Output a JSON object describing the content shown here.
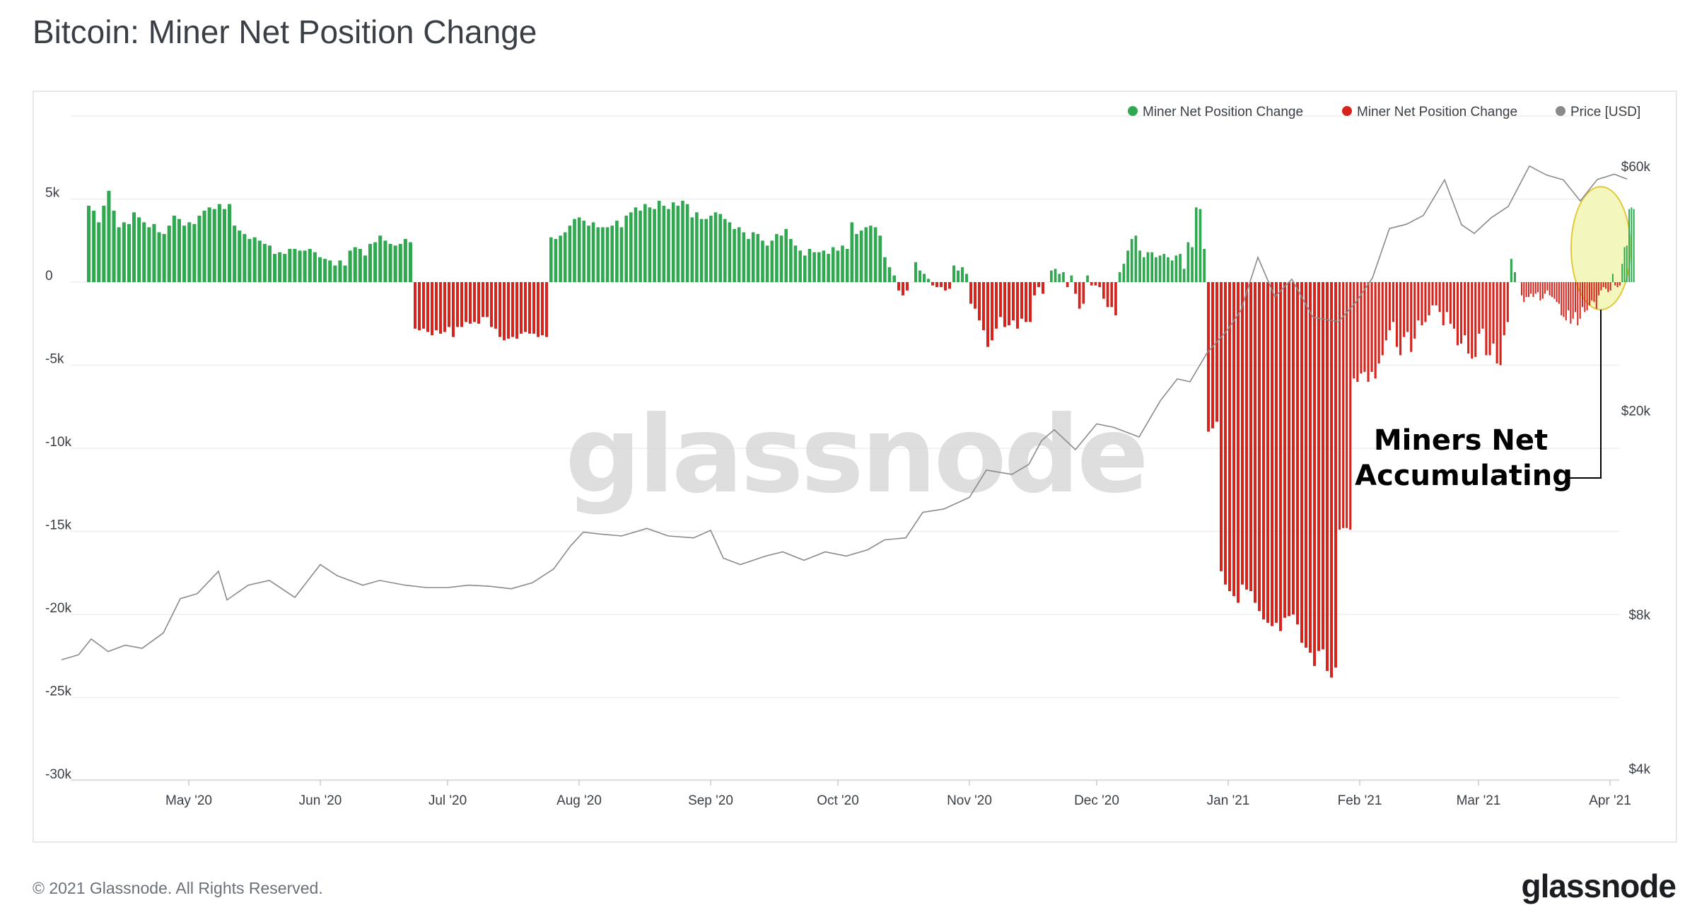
{
  "title": "Bitcoin: Miner Net Position Change",
  "copyright": "© 2021 Glassnode. All Rights Reserved.",
  "brand": "glassnode",
  "colors": {
    "positive": "#2fa84f",
    "negative": "#d6231b",
    "price": "#8a8a8a",
    "highlight": "#f3f6bd"
  },
  "chart_data": {
    "type": "bar",
    "title": "Bitcoin: Miner Net Position Change",
    "legend": [
      {
        "name": "Miner Net Position Change",
        "color": "#2fa84f"
      },
      {
        "name": "Miner Net Position Change",
        "color": "#d6231b"
      },
      {
        "name": "Price [USD]",
        "color": "#8a8a8a"
      }
    ],
    "legend_position": "top-right",
    "grid": true,
    "x_ticks": [
      "May '20",
      "Jun '20",
      "Jul '20",
      "Aug '20",
      "Sep '20",
      "Oct '20",
      "Nov '20",
      "Dec '20",
      "Jan '21",
      "Feb '21",
      "Mar '21",
      "Apr '21"
    ],
    "y_left": {
      "ticks": [
        "5k",
        "0",
        "-5k",
        "-10k",
        "-15k",
        "-20k",
        "-25k",
        "-30k"
      ],
      "range": [
        -30000,
        7000
      ]
    },
    "y_right": {
      "ticks": [
        "$60k",
        "$20k",
        "$8k",
        "$4k"
      ],
      "scale": "log",
      "range": [
        4000,
        60000
      ]
    },
    "annotation": "Miners Net Accumulating",
    "annotation_lines": [
      "Miners Net",
      "Accumulating"
    ],
    "bar_segments": [
      {
        "from": "2020-04-07",
        "to": "2020-06-22",
        "values": [
          4600,
          4300,
          3600,
          4600,
          5500,
          4300,
          3300,
          3600,
          3500,
          4200,
          3900,
          3600,
          3300,
          3500,
          3000,
          2900,
          3400,
          4000,
          3800,
          3400,
          3600,
          3500,
          4000,
          4300,
          4500,
          4400,
          4700,
          4400,
          4700,
          3400,
          3100,
          2900,
          2600,
          2700,
          2500,
          2300,
          2200,
          1700,
          1800,
          1700,
          2000,
          2000,
          1900,
          1900,
          2000,
          1800,
          1500,
          1400,
          1300,
          1000,
          1300,
          1000,
          1900,
          2100,
          2000,
          1600,
          2300,
          2400,
          2800,
          2500,
          2300,
          2200,
          2300,
          2600,
          2400
        ]
      },
      {
        "from": "2020-06-23",
        "to": "2020-07-24",
        "values": [
          -2800,
          -2900,
          -2800,
          -3000,
          -3200,
          -2900,
          -3100,
          -3000,
          -2700,
          -3300,
          -2700,
          -2700,
          -2400,
          -2500,
          -2400,
          -2500,
          -2100,
          -2100,
          -2700,
          -2800,
          -3300,
          -3500,
          -3400,
          -3300,
          -3400,
          -3100,
          -3000,
          -3100,
          -3100,
          -3300,
          -3200,
          -3300
        ]
      },
      {
        "from": "2020-07-25",
        "to": "2020-10-14",
        "values": [
          2700,
          2600,
          2800,
          3000,
          3400,
          3800,
          3900,
          3700,
          3400,
          3600,
          3300,
          3300,
          3300,
          3400,
          3700,
          3300,
          4000,
          4200,
          4500,
          4300,
          4700,
          4500,
          4400,
          4900,
          4600,
          4400,
          4800,
          4600,
          4900,
          4700,
          3900,
          4200,
          3800,
          3800,
          4000,
          4200,
          4100,
          3800,
          3600,
          3200,
          3300,
          3000,
          2600,
          3000,
          2900,
          2500,
          2200,
          2500,
          2900,
          2800,
          3200,
          2600,
          2200,
          1900,
          1600,
          2000,
          1800,
          1800,
          1900,
          1700,
          2100,
          1900,
          2200,
          2000,
          3600,
          2900,
          3100,
          3300,
          3400,
          3300,
          2800,
          1500,
          900,
          400
        ]
      },
      {
        "from": "2020-10-15",
        "to": "2020-11-19",
        "values": [
          -500,
          -800,
          -500,
          0,
          1200,
          700,
          500,
          200,
          -200,
          -300,
          -300,
          -500,
          -400,
          1000,
          700,
          900,
          500,
          -1300,
          -1600,
          -2300,
          -2900,
          -3900,
          -3500,
          -2800,
          -2100,
          -2700,
          -2600,
          -2300,
          -2800,
          -2200,
          -2400,
          -2400,
          -800,
          -300,
          -700,
          0
        ]
      },
      {
        "from": "2020-11-20",
        "to": "2020-12-26",
        "values": [
          700,
          800,
          500,
          600,
          -300,
          400,
          -700,
          -1600,
          -1300,
          400,
          -200,
          -200,
          -300,
          -1000,
          -1500,
          -1500,
          -2000,
          600,
          1100,
          1900,
          2600,
          2800,
          1900,
          1500,
          1800,
          1800,
          1500,
          1600,
          1700,
          1500,
          1300,
          1600,
          1700,
          800,
          2400,
          2100,
          4500,
          4400,
          2000
        ]
      },
      {
        "from": "2020-12-27",
        "to": "2021-01-26",
        "values": [
          -9000,
          -8800,
          -8400,
          -17400,
          -18200,
          -18600,
          -18900,
          -19300,
          -18200,
          -18500,
          -18600,
          -19300,
          -19800,
          -20300,
          -20500,
          -20700,
          -20500,
          -21000,
          -20200,
          -20100,
          -20000,
          -20600,
          -21700,
          -22000,
          -22300,
          -23100,
          -22200,
          -22100,
          -23400,
          -23800,
          -23200
        ]
      },
      {
        "from": "2021-01-27",
        "to": "2021-03-10",
        "values": [
          -14900,
          -14800,
          -14800,
          -14900,
          -5800,
          -6000,
          -5500,
          -5400,
          -6000,
          -5400,
          -5800,
          -4900,
          -4400,
          -3500,
          -2900,
          -2400,
          -3900,
          -4400,
          -3300,
          -3000,
          -4200,
          -3400,
          -2300,
          -2600,
          -2400,
          -2000,
          -1400,
          -1400,
          -1800,
          -2600,
          -1800,
          -2500,
          -2800,
          -3800,
          -3700,
          -3200,
          -4300,
          -4600,
          -4500,
          -3100,
          -2800,
          -4400,
          -4400,
          -3700,
          -4900,
          -5000,
          -3200,
          -2400,
          1400,
          600,
          0
        ]
      },
      {
        "from": "2021-03-11",
        "to": "2021-04-06",
        "values": [
          -800,
          -1200,
          -900,
          -900,
          -700,
          -900,
          -700,
          -600,
          -1100,
          -1000,
          -700,
          -500,
          -800,
          -900,
          -1000,
          -1200,
          -1300,
          -2000,
          -2100,
          -2300,
          -1700,
          -2500,
          -2200,
          -1800,
          -2600,
          -2200,
          -1500,
          -1800,
          -1700,
          -1400,
          -1100,
          -1200,
          -1600,
          -800,
          -500,
          -300,
          -400,
          -600,
          -500,
          500,
          -200,
          -300,
          -200,
          1100,
          2100,
          2200,
          4400,
          4500,
          4400
        ]
      }
    ],
    "price_series": [
      [
        "2020-04-01",
        6650
      ],
      [
        "2020-04-05",
        6800
      ],
      [
        "2020-04-08",
        7300
      ],
      [
        "2020-04-12",
        6900
      ],
      [
        "2020-04-16",
        7100
      ],
      [
        "2020-04-20",
        7000
      ],
      [
        "2020-04-25",
        7500
      ],
      [
        "2020-04-29",
        8750
      ],
      [
        "2020-05-03",
        8950
      ],
      [
        "2020-05-08",
        9900
      ],
      [
        "2020-05-10",
        8700
      ],
      [
        "2020-05-15",
        9300
      ],
      [
        "2020-05-20",
        9500
      ],
      [
        "2020-05-26",
        8800
      ],
      [
        "2020-06-01",
        10200
      ],
      [
        "2020-06-05",
        9700
      ],
      [
        "2020-06-11",
        9300
      ],
      [
        "2020-06-15",
        9500
      ],
      [
        "2020-06-21",
        9300
      ],
      [
        "2020-06-26",
        9200
      ],
      [
        "2020-07-01",
        9200
      ],
      [
        "2020-07-06",
        9300
      ],
      [
        "2020-07-11",
        9250
      ],
      [
        "2020-07-16",
        9150
      ],
      [
        "2020-07-21",
        9400
      ],
      [
        "2020-07-26",
        10000
      ],
      [
        "2020-07-30",
        11100
      ],
      [
        "2020-08-02",
        11800
      ],
      [
        "2020-08-06",
        11700
      ],
      [
        "2020-08-11",
        11600
      ],
      [
        "2020-08-17",
        12000
      ],
      [
        "2020-08-22",
        11600
      ],
      [
        "2020-08-28",
        11500
      ],
      [
        "2020-09-01",
        11900
      ],
      [
        "2020-09-04",
        10500
      ],
      [
        "2020-09-08",
        10200
      ],
      [
        "2020-09-14",
        10600
      ],
      [
        "2020-09-18",
        10800
      ],
      [
        "2020-09-23",
        10400
      ],
      [
        "2020-09-28",
        10800
      ],
      [
        "2020-10-03",
        10600
      ],
      [
        "2020-10-08",
        10900
      ],
      [
        "2020-10-12",
        11400
      ],
      [
        "2020-10-17",
        11500
      ],
      [
        "2020-10-21",
        12900
      ],
      [
        "2020-10-26",
        13100
      ],
      [
        "2020-11-01",
        13800
      ],
      [
        "2020-11-05",
        15600
      ],
      [
        "2020-11-11",
        15300
      ],
      [
        "2020-11-15",
        16000
      ],
      [
        "2020-11-18",
        17800
      ],
      [
        "2020-11-21",
        18700
      ],
      [
        "2020-11-26",
        17100
      ],
      [
        "2020-12-01",
        19200
      ],
      [
        "2020-12-05",
        18900
      ],
      [
        "2020-12-11",
        18100
      ],
      [
        "2020-12-16",
        21300
      ],
      [
        "2020-12-20",
        23500
      ],
      [
        "2020-12-23",
        23200
      ],
      [
        "2020-12-27",
        26400
      ],
      [
        "2021-01-01",
        29400
      ],
      [
        "2021-01-04",
        32000
      ],
      [
        "2021-01-08",
        40600
      ],
      [
        "2021-01-12",
        34000
      ],
      [
        "2021-01-16",
        36800
      ],
      [
        "2021-01-21",
        31000
      ],
      [
        "2021-01-27",
        30400
      ],
      [
        "2021-01-31",
        33100
      ],
      [
        "2021-02-04",
        37000
      ],
      [
        "2021-02-08",
        46200
      ],
      [
        "2021-02-12",
        47100
      ],
      [
        "2021-02-16",
        49000
      ],
      [
        "2021-02-21",
        57500
      ],
      [
        "2021-02-25",
        47000
      ],
      [
        "2021-02-28",
        45200
      ],
      [
        "2021-03-04",
        48500
      ],
      [
        "2021-03-08",
        51000
      ],
      [
        "2021-03-13",
        61200
      ],
      [
        "2021-03-17",
        58800
      ],
      [
        "2021-03-21",
        57500
      ],
      [
        "2021-03-25",
        52300
      ],
      [
        "2021-03-29",
        57600
      ],
      [
        "2021-04-02",
        59000
      ],
      [
        "2021-04-05",
        57700
      ]
    ]
  }
}
